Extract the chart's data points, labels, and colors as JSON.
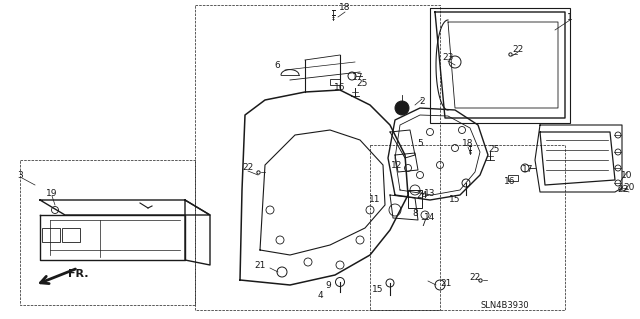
{
  "bg_color": "#ffffff",
  "line_color": "#1a1a1a",
  "diagram_id": "SLN4B3930",
  "fig_width": 6.4,
  "fig_height": 3.19,
  "dpi": 100
}
